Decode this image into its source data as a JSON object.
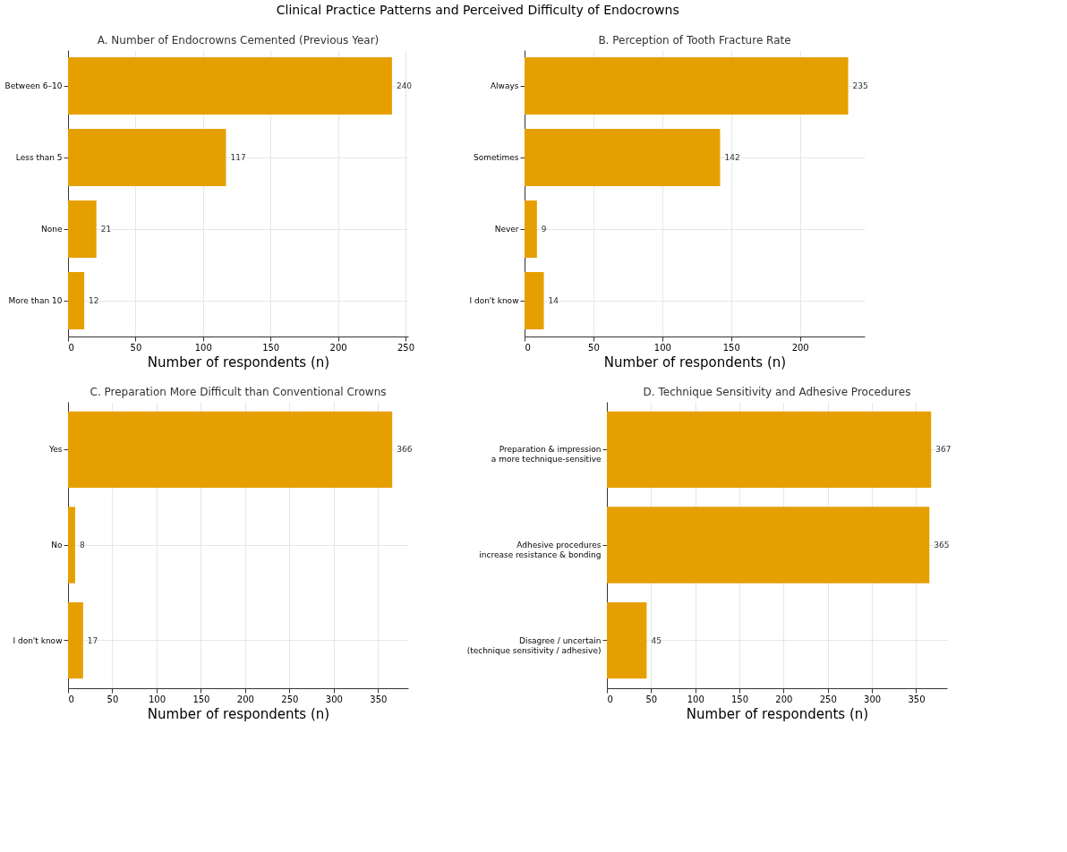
{
  "chart_data": [
    {
      "type": "bar",
      "orientation": "horizontal",
      "title": "A. Number of Endocrowns Cemented (Previous Year)",
      "categories": [
        "Between 6–10",
        "Less than 5",
        "None",
        "More than 10"
      ],
      "values": [
        240,
        117,
        21,
        12
      ],
      "color": "#e69f00",
      "xlim": [
        0,
        252
      ],
      "xticks": [
        0,
        50,
        100,
        150,
        200,
        250
      ],
      "xlabel": "Number of respondents (n)",
      "data_labels": true,
      "grid": true
    },
    {
      "type": "bar",
      "orientation": "horizontal",
      "title": "B. Perception of Tooth Fracture Rate",
      "categories": [
        "Always",
        "Sometimes",
        "Never",
        "I don't know"
      ],
      "values": [
        235,
        142,
        9,
        14
      ],
      "color": "#e69f00",
      "xlim": [
        0,
        247
      ],
      "xticks": [
        0,
        50,
        100,
        150,
        200
      ],
      "xlabel": "Number of respondents (n)",
      "data_labels": true,
      "grid": true
    },
    {
      "type": "bar",
      "orientation": "horizontal",
      "title": "C. Preparation More Difficult than Conventional Crowns",
      "categories": [
        "Yes",
        "No",
        "I don't know"
      ],
      "values": [
        366,
        8,
        17
      ],
      "color": "#e69f00",
      "xlim": [
        0,
        384
      ],
      "xticks": [
        0,
        50,
        100,
        150,
        200,
        250,
        300,
        350
      ],
      "xlabel": "Number of respondents (n)",
      "data_labels": true,
      "grid": true
    },
    {
      "type": "bar",
      "orientation": "horizontal",
      "title": "D. Technique Sensitivity and Adhesive Procedures",
      "categories": [
        "Preparation & impression\na more technique-sensitive",
        "Adhesive procedures\nincrease resistance & bonding",
        "Disagree / uncertain\n(technique sensitivity / adhesive)"
      ],
      "values": [
        367,
        365,
        45
      ],
      "color": "#e69f00",
      "xlim": [
        0,
        385
      ],
      "xticks": [
        0,
        50,
        100,
        150,
        200,
        250,
        300,
        350
      ],
      "xlabel": "Number of respondents (n)",
      "data_labels": true,
      "grid": true,
      "annotations": [
        "Clinical Practice Patterns and Perceived Difficulty of Endocrowns"
      ]
    }
  ]
}
